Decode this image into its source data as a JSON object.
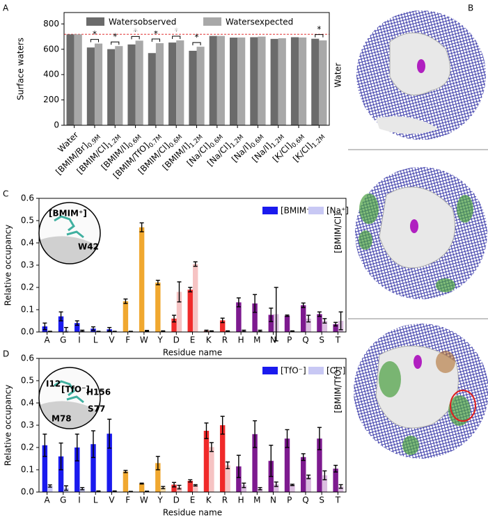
{
  "chart_data": [
    {
      "type": "bar",
      "panel": "A",
      "ylabel": "Surface waters",
      "categories": [
        "Water",
        "[BMIM/Br]0.9M",
        "[BMIM/Cl]1.2M",
        "[BMIM/I]0.6M",
        "[BMIM/TfO]0.7M",
        "[BMIM/Cl]0.6M",
        "[BMIM/I]1.2M",
        "[Na/Cl]0.6M",
        "[Na/Cl]1.2M",
        "[Na/I]0.6M",
        "[Na/I]1.2M",
        "[K/Cl]0.6M",
        "[K/Cl]1.2M"
      ],
      "series": [
        {
          "name": "Watersobserved",
          "color": "#6b6b6b",
          "values": [
            718,
            614,
            601,
            638,
            570,
            653,
            588,
            705,
            692,
            695,
            682,
            695,
            683
          ]
        },
        {
          "name": "Watersexpected",
          "color": "#a8a8a8",
          "values": [
            718,
            645,
            625,
            668,
            648,
            670,
            620,
            705,
            693,
            700,
            687,
            693,
            670
          ]
        }
      ],
      "ylim": [
        0,
        890
      ],
      "yticks": [
        0,
        200,
        400,
        600,
        800
      ],
      "reference_line": {
        "value": 718,
        "color": "#e03030"
      },
      "annotations": [
        {
          "category": 1,
          "text": "*"
        },
        {
          "category": 2,
          "text": "*"
        },
        {
          "category": 3,
          "text": "*"
        },
        {
          "category": 4,
          "text": "*"
        },
        {
          "category": 5,
          "text": "*"
        },
        {
          "category": 6,
          "text": "*"
        },
        {
          "category": 12,
          "text": "*"
        }
      ],
      "legend": "upper center"
    },
    {
      "type": "bar",
      "panel": "C",
      "ylabel": "Relative occupancy",
      "xlabel": "Residue name",
      "categories": [
        "A",
        "G",
        "I",
        "L",
        "V",
        "F",
        "W",
        "Y",
        "D",
        "E",
        "K",
        "R",
        "H",
        "M",
        "N",
        "P",
        "Q",
        "S",
        "T"
      ],
      "category_colors": [
        "#1a1aee",
        "#1a1aee",
        "#1a1aee",
        "#1a1aee",
        "#1a1aee",
        "#f0a830",
        "#f0a830",
        "#f0a830",
        "#f02a2a",
        "#f02a2a",
        "#f02a2a",
        "#f02a2a",
        "#7d1a8f",
        "#7d1a8f",
        "#7d1a8f",
        "#7d1a8f",
        "#7d1a8f",
        "#7d1a8f",
        "#7d1a8f"
      ],
      "series": [
        {
          "name": "[BMIM⁺]",
          "color": "#1a1aee",
          "colors": [
            "#1a1aee",
            "#1a1aee",
            "#1a1aee",
            "#1a1aee",
            "#1a1aee",
            "#f0a830",
            "#f0a830",
            "#f0a830",
            "#f02a2a",
            "#f02a2a",
            "#f02a2a",
            "#f02a2a",
            "#7d1a8f",
            "#7d1a8f",
            "#7d1a8f",
            "#7d1a8f",
            "#7d1a8f",
            "#7d1a8f",
            "#7d1a8f"
          ],
          "values": [
            0.025,
            0.07,
            0.04,
            0.015,
            0.012,
            0.138,
            0.47,
            0.222,
            0.06,
            0.19,
            0.005,
            0.052,
            0.133,
            0.128,
            0.077,
            0.073,
            0.12,
            0.08,
            0.035
          ],
          "errors": [
            0.015,
            0.02,
            0.01,
            0.008,
            0.008,
            0.01,
            0.02,
            0.01,
            0.015,
            0.01,
            0.003,
            0.01,
            0.02,
            0.04,
            0.03,
            0.003,
            0.01,
            0.01,
            0.008
          ]
        },
        {
          "name": "[Na⁺]",
          "color": "#c8c8f4",
          "colors": [
            "#c8c8f4",
            "#c8c8f4",
            "#c8c8f4",
            "#c8c8f4",
            "#c8c8f4",
            "#f6dcaa",
            "#f6dcaa",
            "#f6dcaa",
            "#f6c3c3",
            "#f6c3c3",
            "#f6c3c3",
            "#f6c3c3",
            "#dbbde0",
            "#dbbde0",
            "#dbbde0",
            "#dbbde0",
            "#dbbde0",
            "#dbbde0",
            "#dbbde0"
          ],
          "values": [
            0.002,
            0.01,
            0.005,
            0.002,
            0.002,
            0.002,
            0.005,
            0.003,
            0.18,
            0.305,
            0.003,
            0.003,
            0.005,
            0.005,
            0.08,
            0.003,
            0.06,
            0.05,
            0.05
          ],
          "errors": [
            0.001,
            0.01,
            0.003,
            0.001,
            0.001,
            0.001,
            0.002,
            0.002,
            0.045,
            0.01,
            0.002,
            0.002,
            0.003,
            0.003,
            0.12,
            0.002,
            0.015,
            0.01,
            0.04
          ]
        }
      ],
      "ylim": [
        0,
        0.6
      ],
      "yticks": [
        {
          "value": 0,
          "label": "0.0"
        },
        0.1,
        0.2,
        0.3,
        0.4,
        0.5,
        0.6
      ],
      "legend": "upper right",
      "inset_labels": [
        "[BMIM⁺]",
        "W42"
      ]
    },
    {
      "type": "bar",
      "panel": "D",
      "ylabel": "Relative occupancy",
      "xlabel": "Residue name",
      "categories": [
        "A",
        "G",
        "I",
        "L",
        "V",
        "F",
        "W",
        "Y",
        "D",
        "E",
        "K",
        "R",
        "H",
        "M",
        "N",
        "P",
        "Q",
        "S",
        "T"
      ],
      "category_colors": [
        "#1a1aee",
        "#1a1aee",
        "#1a1aee",
        "#1a1aee",
        "#1a1aee",
        "#f0a830",
        "#f0a830",
        "#f0a830",
        "#f02a2a",
        "#f02a2a",
        "#f02a2a",
        "#f02a2a",
        "#7d1a8f",
        "#7d1a8f",
        "#7d1a8f",
        "#7d1a8f",
        "#7d1a8f",
        "#7d1a8f",
        "#7d1a8f"
      ],
      "series": [
        {
          "name": "[TfO⁻]",
          "color": "#1a1aee",
          "colors": [
            "#1a1aee",
            "#1a1aee",
            "#1a1aee",
            "#1a1aee",
            "#1a1aee",
            "#f0a830",
            "#f0a830",
            "#f0a830",
            "#f02a2a",
            "#f02a2a",
            "#f02a2a",
            "#f02a2a",
            "#7d1a8f",
            "#7d1a8f",
            "#7d1a8f",
            "#7d1a8f",
            "#7d1a8f",
            "#7d1a8f",
            "#7d1a8f"
          ],
          "values": [
            0.21,
            0.16,
            0.2,
            0.215,
            0.262,
            0.092,
            0.038,
            0.13,
            0.033,
            0.05,
            0.275,
            0.3,
            0.115,
            0.26,
            0.14,
            0.24,
            0.157,
            0.24,
            0.105
          ],
          "errors": [
            0.05,
            0.06,
            0.06,
            0.06,
            0.065,
            0.005,
            0.002,
            0.03,
            0.01,
            0.005,
            0.035,
            0.04,
            0.05,
            0.06,
            0.07,
            0.04,
            0.015,
            0.05,
            0.015
          ]
        },
        {
          "name": "[Cl⁻]",
          "color": "#c8c8f4",
          "colors": [
            "#c8c8f4",
            "#c8c8f4",
            "#c8c8f4",
            "#c8c8f4",
            "#c8c8f4",
            "#f6dcaa",
            "#f6dcaa",
            "#f6dcaa",
            "#f6c3c3",
            "#f6c3c3",
            "#f6c3c3",
            "#f6c3c3",
            "#dbbde0",
            "#dbbde0",
            "#dbbde0",
            "#dbbde0",
            "#dbbde0",
            "#dbbde0",
            "#dbbde0"
          ],
          "values": [
            0.027,
            0.018,
            0.015,
            0.003,
            0.003,
            0.002,
            0.003,
            0.02,
            0.022,
            0.03,
            0.202,
            0.12,
            0.03,
            0.015,
            0.035,
            0.032,
            0.068,
            0.075,
            0.025
          ],
          "errors": [
            0.005,
            0.01,
            0.005,
            0.002,
            0.002,
            0.001,
            0.001,
            0.005,
            0.008,
            0.003,
            0.02,
            0.015,
            0.01,
            0.005,
            0.01,
            0.003,
            0.008,
            0.02,
            0.008
          ]
        }
      ],
      "ylim": [
        0,
        0.6
      ],
      "yticks": [
        {
          "value": 0,
          "label": "0.0"
        },
        0.1,
        0.2,
        0.3,
        0.4,
        0.5,
        0.6
      ],
      "legend": "upper right",
      "inset_labels": [
        "I12",
        "[TfO⁻]",
        "H156",
        "M78",
        "S77"
      ]
    }
  ],
  "panel_b": {
    "label": "B",
    "views": [
      "Water",
      "[BMIM/Cl]",
      "[BMIM/TfO]"
    ]
  }
}
